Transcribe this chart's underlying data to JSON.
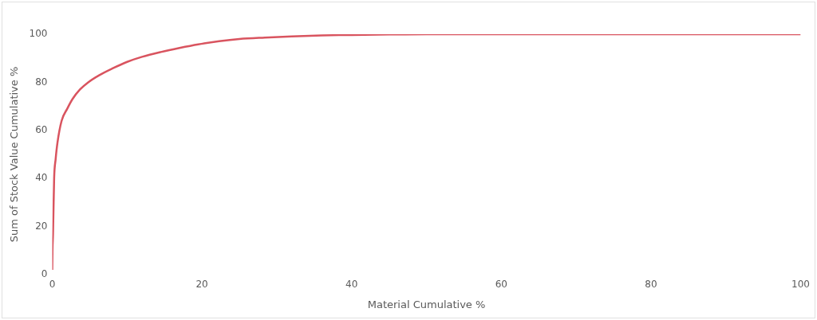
{
  "chart_data": {
    "type": "line",
    "xlabel": "Material Cumulative %",
    "ylabel": "Sum of Stock Value Cumulative %",
    "x": [
      0,
      0.03,
      0.1,
      0.25,
      0.45,
      0.7,
      1.25,
      2,
      2.7,
      3.7,
      4.8,
      6.3,
      8,
      10,
      12,
      14.5,
      17,
      19.5,
      22.3,
      25,
      28.4,
      32,
      36,
      40,
      45,
      50,
      60,
      70,
      80,
      90,
      100
    ],
    "series": [
      {
        "color": "#d9545f",
        "values": [
          2,
          10,
          17,
          40,
          48,
          55,
          64,
          69,
          73,
          77,
          80,
          83,
          85.7,
          88.5,
          90.6,
          92.6,
          94.3,
          95.8,
          97.1,
          98,
          98.6,
          99.1,
          99.5,
          99.7,
          99.9,
          100,
          100,
          100,
          100,
          100,
          100
        ]
      }
    ],
    "xlim": [
      0,
      100
    ],
    "xticks": [
      0,
      20,
      40,
      60,
      80,
      100
    ],
    "ylim": [
      0,
      100
    ],
    "yticks": [
      0,
      20,
      40,
      60,
      80,
      100
    ],
    "legend": false,
    "marker": "none",
    "line_style": "solid"
  }
}
